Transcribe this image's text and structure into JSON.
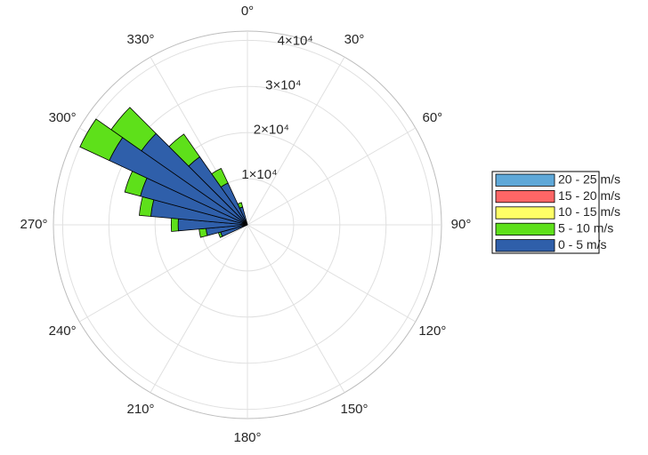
{
  "chart_data": {
    "type": "wind-rose",
    "directions": [
      250,
      260,
      270,
      280,
      290,
      300,
      310,
      320,
      330,
      340
    ],
    "sector_width": 10,
    "series": [
      {
        "name": "20 - 25 m/s",
        "color": "#5fa8d8",
        "values": [
          0,
          0,
          0,
          0,
          0,
          0,
          0,
          0,
          0,
          0
        ]
      },
      {
        "name": "15 - 20 m/s",
        "color": "#ff6666",
        "values": [
          0,
          0,
          0,
          0,
          0,
          0,
          0,
          0,
          0,
          0
        ]
      },
      {
        "name": "10 - 15 m/s",
        "color": "#ffff66",
        "values": [
          0,
          0,
          0,
          0,
          0,
          0,
          0,
          0,
          0,
          0
        ]
      },
      {
        "name": "5 - 10 m/s",
        "color": "#5ee01a",
        "values": [
          500,
          1500,
          1500,
          2500,
          3500,
          7000,
          8000,
          6000,
          3500,
          1000
        ]
      },
      {
        "name": "0 - 5 m/s",
        "color": "#2f5faa",
        "values": [
          6000,
          9000,
          15000,
          21000,
          24000,
          33000,
          28000,
          18000,
          10000,
          4000
        ]
      }
    ],
    "rlim": [
      0,
      42000
    ],
    "rticks": [
      {
        "value": 10000,
        "label": "1×10⁴"
      },
      {
        "value": 20000,
        "label": "2×10⁴"
      },
      {
        "value": 30000,
        "label": "3×10⁴"
      },
      {
        "value": 40000,
        "label": "4×10⁴"
      }
    ],
    "thetaticks": [
      {
        "value": 0,
        "label": "0°"
      },
      {
        "value": 30,
        "label": "30°"
      },
      {
        "value": 60,
        "label": "60°"
      },
      {
        "value": 90,
        "label": "90°"
      },
      {
        "value": 120,
        "label": "120°"
      },
      {
        "value": 150,
        "label": "150°"
      },
      {
        "value": 180,
        "label": "180°"
      },
      {
        "value": 210,
        "label": "210°"
      },
      {
        "value": 240,
        "label": "240°"
      },
      {
        "value": 270,
        "label": "270°"
      },
      {
        "value": 300,
        "label": "300°"
      },
      {
        "value": 330,
        "label": "330°"
      }
    ],
    "grid": true
  }
}
